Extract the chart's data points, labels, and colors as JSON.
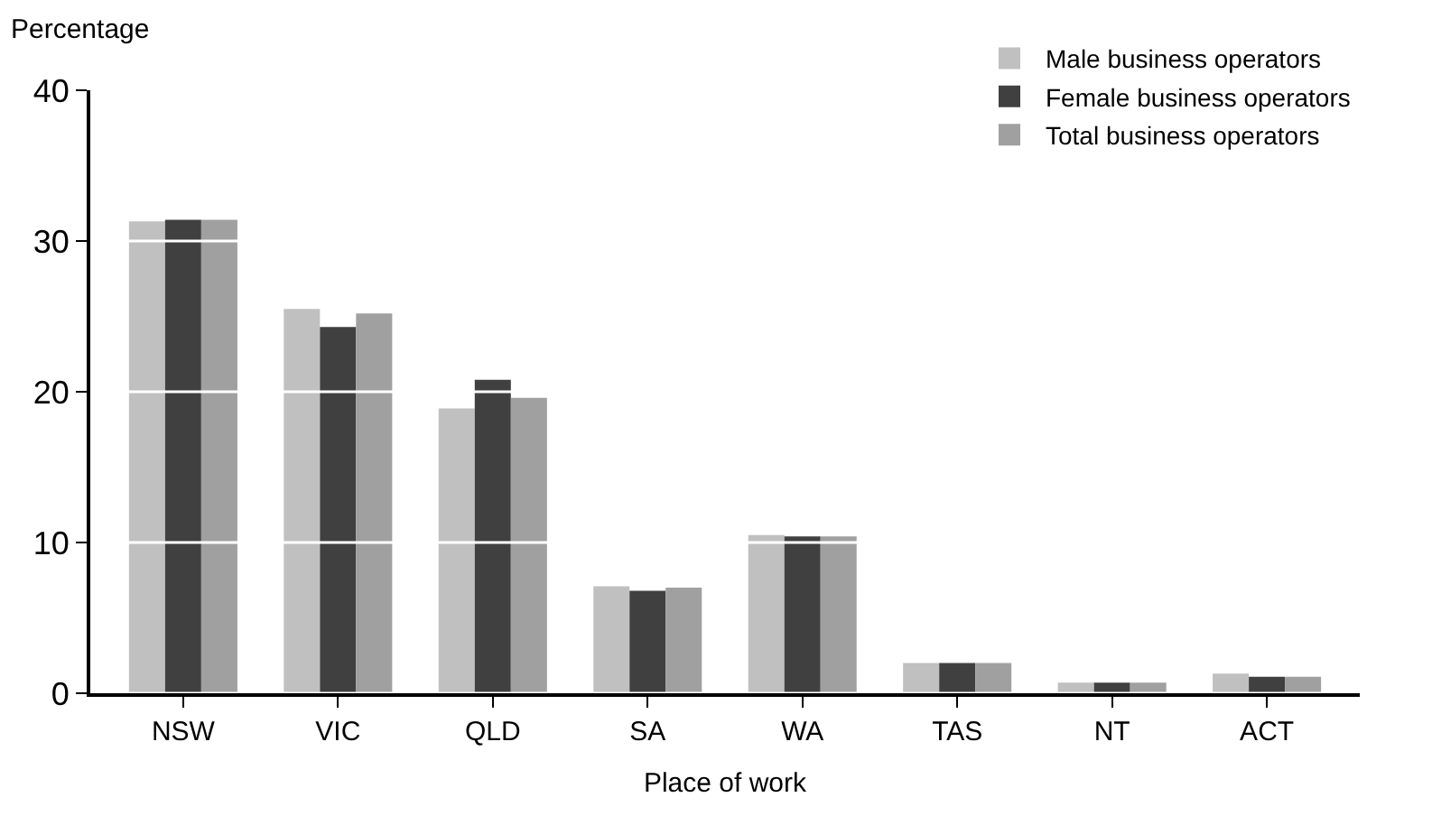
{
  "chart_data": {
    "type": "bar",
    "xlabel": "Place of work",
    "ylabel": "Percentage",
    "categories": [
      "NSW",
      "VIC",
      "QLD",
      "SA",
      "WA",
      "TAS",
      "NT",
      "ACT"
    ],
    "series": [
      {
        "name": "Male business operators",
        "color": "#c0c0c0",
        "values": [
          31.3,
          25.5,
          18.9,
          7.1,
          10.5,
          2.0,
          0.7,
          1.3
        ]
      },
      {
        "name": "Female business operators",
        "color": "#404040",
        "values": [
          31.4,
          24.3,
          20.8,
          6.8,
          10.4,
          2.0,
          0.7,
          1.1
        ]
      },
      {
        "name": "Total business operators",
        "color": "#a0a0a0",
        "values": [
          31.4,
          25.2,
          19.6,
          7.0,
          10.4,
          2.0,
          0.7,
          1.1
        ]
      }
    ],
    "ylim": [
      0,
      40
    ],
    "yticks": [
      0,
      10,
      20,
      30,
      40
    ],
    "grid": "y",
    "legend": "top right"
  }
}
